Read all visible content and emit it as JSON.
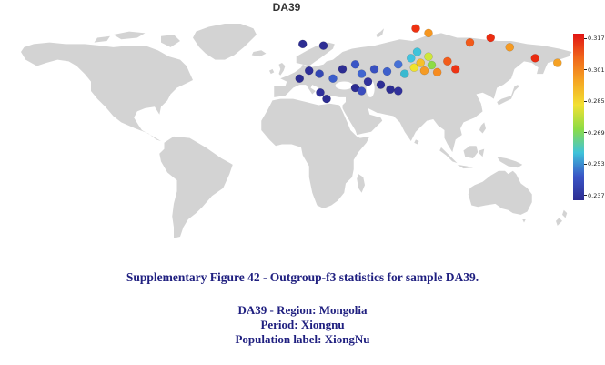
{
  "figure": {
    "title": "DA39",
    "caption": "Supplementary Figure 42 - Outgroup-f3 statistics for sample DA39.",
    "details": [
      "DA39 - Region: Mongolia",
      "Period: Xiongnu",
      "Population label: XiongNu"
    ],
    "text_color": "#202080",
    "title_color": "#333333"
  },
  "map": {
    "land_color": "#d3d3d3",
    "ocean_color": "#ffffff"
  },
  "colorbar": {
    "ticks": [
      "0.3179",
      "0.30183",
      "0.28576",
      "0.26969",
      "0.25361",
      "0.23754"
    ],
    "gradient_top_to_bottom": [
      "#e11414",
      "#f0661a",
      "#f5a623",
      "#f2e032",
      "#8ddc45",
      "#3fc3da",
      "#3a55c6",
      "#2d2d92"
    ]
  },
  "chart_data": {
    "type": "scatter",
    "title": "DA39",
    "projection": "equirectangular world map, lon -180..180, lat 90..-60",
    "value_label": "outgroup-f3 statistic",
    "value_range": [
      0.23754,
      0.3179
    ],
    "colorbar_ticks": [
      0.3179,
      0.30183,
      0.28576,
      0.26969,
      0.25361,
      0.23754
    ],
    "legend_position": "right colorbar",
    "points": [
      {
        "lon": 9,
        "lat": 70,
        "value": 0.24,
        "color": "#2d2d92"
      },
      {
        "lon": 22,
        "lat": 69,
        "value": 0.241,
        "color": "#2e2e95"
      },
      {
        "lon": 13,
        "lat": 53,
        "value": 0.242,
        "color": "#2f2f98"
      },
      {
        "lon": 7,
        "lat": 48,
        "value": 0.24,
        "color": "#2d2d92"
      },
      {
        "lon": 19.5,
        "lat": 51,
        "value": 0.252,
        "color": "#3448b4"
      },
      {
        "lon": 28,
        "lat": 48,
        "value": 0.255,
        "color": "#3c5ecb"
      },
      {
        "lon": 34,
        "lat": 54,
        "value": 0.241,
        "color": "#2d2d92"
      },
      {
        "lon": 42,
        "lat": 57,
        "value": 0.254,
        "color": "#3a55c6"
      },
      {
        "lon": 46,
        "lat": 51,
        "value": 0.257,
        "color": "#4065d0"
      },
      {
        "lon": 50,
        "lat": 46,
        "value": 0.243,
        "color": "#32329c"
      },
      {
        "lon": 42,
        "lat": 42,
        "value": 0.24,
        "color": "#2d2d92"
      },
      {
        "lon": 46,
        "lat": 40,
        "value": 0.252,
        "color": "#3a4cbe"
      },
      {
        "lon": 20,
        "lat": 39,
        "value": 0.242,
        "color": "#30309a"
      },
      {
        "lon": 24,
        "lat": 35,
        "value": 0.24,
        "color": "#2d2d92"
      },
      {
        "lon": 58,
        "lat": 44,
        "value": 0.241,
        "color": "#2e2e95"
      },
      {
        "lon": 64,
        "lat": 41,
        "value": 0.24,
        "color": "#2d2d92"
      },
      {
        "lon": 69,
        "lat": 40,
        "value": 0.243,
        "color": "#30309b"
      },
      {
        "lon": 54,
        "lat": 54,
        "value": 0.253,
        "color": "#3850c0"
      },
      {
        "lon": 62,
        "lat": 52.5,
        "value": 0.256,
        "color": "#3e60cc"
      },
      {
        "lon": 69,
        "lat": 57,
        "value": 0.259,
        "color": "#4671d6"
      },
      {
        "lon": 73,
        "lat": 51,
        "value": 0.272,
        "color": "#39b9d0"
      },
      {
        "lon": 77,
        "lat": 61,
        "value": 0.274,
        "color": "#41c4e0"
      },
      {
        "lon": 80.9,
        "lat": 65,
        "value": 0.273,
        "color": "#3fc3da"
      },
      {
        "lon": 79,
        "lat": 55,
        "value": 0.293,
        "color": "#f0e32e"
      },
      {
        "lon": 83,
        "lat": 58,
        "value": 0.298,
        "color": "#f6c029"
      },
      {
        "lon": 85.4,
        "lat": 53,
        "value": 0.302,
        "color": "#f59b24"
      },
      {
        "lon": 88,
        "lat": 62,
        "value": 0.289,
        "color": "#cfe73a"
      },
      {
        "lon": 90,
        "lat": 56.6,
        "value": 0.285,
        "color": "#8ddc45"
      },
      {
        "lon": 93.5,
        "lat": 52,
        "value": 0.303,
        "color": "#f68b1f"
      },
      {
        "lon": 99.9,
        "lat": 59,
        "value": 0.308,
        "color": "#f25c1b"
      },
      {
        "lon": 105,
        "lat": 54,
        "value": 0.315,
        "color": "#ee3414"
      },
      {
        "lon": 114,
        "lat": 71,
        "value": 0.308,
        "color": "#f25a1a"
      },
      {
        "lon": 80,
        "lat": 80,
        "value": 0.314,
        "color": "#ee3212"
      },
      {
        "lon": 88,
        "lat": 77,
        "value": 0.303,
        "color": "#f6961f"
      },
      {
        "lon": 127,
        "lat": 74,
        "value": 0.316,
        "color": "#ec2c10"
      },
      {
        "lon": 139,
        "lat": 68,
        "value": 0.302,
        "color": "#f59a22"
      },
      {
        "lon": 155,
        "lat": 61,
        "value": 0.316,
        "color": "#ea2b10"
      },
      {
        "lon": 169,
        "lat": 58,
        "value": 0.301,
        "color": "#f5a124"
      }
    ]
  }
}
